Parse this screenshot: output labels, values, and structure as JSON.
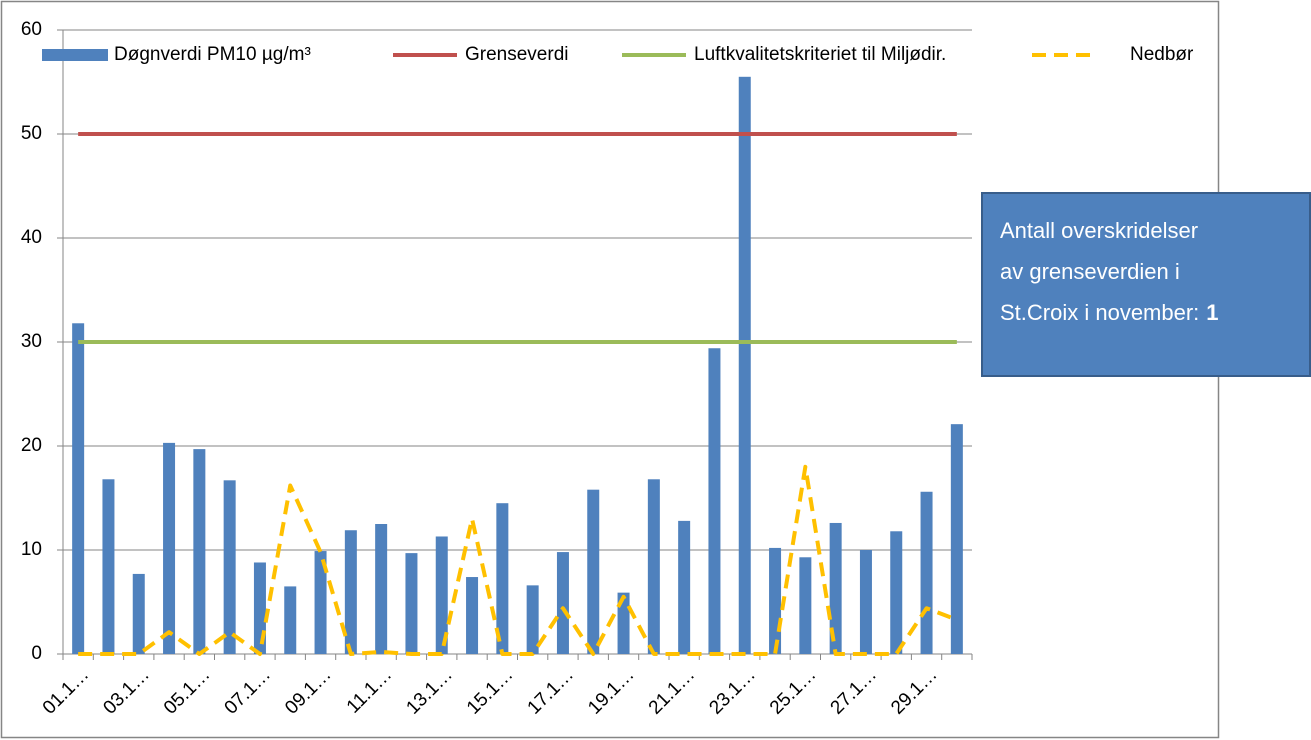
{
  "chart_data": {
    "type": "bar",
    "categories": [
      "01.1…",
      null,
      "03.1…",
      null,
      "05.1…",
      null,
      "07.1…",
      null,
      "09.1…",
      null,
      "11.1…",
      null,
      "13.1…",
      null,
      "15.1…",
      null,
      "17.1…",
      null,
      "19.1…",
      null,
      "21.1…",
      null,
      "23.1…",
      null,
      "25.1…",
      null,
      "27.1…",
      null,
      "29.1…",
      null
    ],
    "series": [
      {
        "name": "Døgnverdi PM10 µg/m³",
        "type": "bar",
        "color": "#4f81bd",
        "values": [
          31.8,
          16.8,
          7.7,
          20.3,
          19.7,
          16.7,
          8.8,
          6.5,
          9.9,
          11.9,
          12.5,
          9.7,
          11.3,
          7.4,
          14.5,
          6.6,
          9.8,
          15.8,
          5.9,
          16.8,
          12.8,
          29.4,
          55.5,
          10.2,
          9.3,
          12.6,
          10.0,
          11.8,
          15.6,
          22.1
        ]
      },
      {
        "name": "Grenseverdi",
        "type": "line",
        "color": "#c0504d",
        "dash": false,
        "values": [
          50,
          50,
          50,
          50,
          50,
          50,
          50,
          50,
          50,
          50,
          50,
          50,
          50,
          50,
          50,
          50,
          50,
          50,
          50,
          50,
          50,
          50,
          50,
          50,
          50,
          50,
          50,
          50,
          50,
          50
        ]
      },
      {
        "name": "Luftkvalitetskriteriet til Miljødir.",
        "type": "line",
        "color": "#9bbb59",
        "dash": false,
        "values": [
          30,
          30,
          30,
          30,
          30,
          30,
          30,
          30,
          30,
          30,
          30,
          30,
          30,
          30,
          30,
          30,
          30,
          30,
          30,
          30,
          30,
          30,
          30,
          30,
          30,
          30,
          30,
          30,
          30,
          30
        ]
      },
      {
        "name": "Nedbør",
        "type": "line",
        "color": "#ffc000",
        "dash": true,
        "values": [
          0,
          0,
          0,
          2.1,
          0,
          2.1,
          0,
          16.2,
          9.8,
          0,
          0.2,
          0,
          0,
          13,
          0,
          0,
          4.4,
          0,
          5.5,
          0,
          0,
          0,
          0,
          0,
          18,
          0,
          0,
          0,
          4.4,
          3.3
        ]
      }
    ],
    "ylim": [
      0,
      60
    ],
    "yticks": [
      0,
      10,
      20,
      30,
      40,
      50,
      60
    ],
    "grid": true,
    "legend": "top",
    "annotation_lines": [
      "Antall overskridelser",
      "av grenseverdien i",
      "St.Croix i november:"
    ],
    "annotation_bold": "1"
  }
}
